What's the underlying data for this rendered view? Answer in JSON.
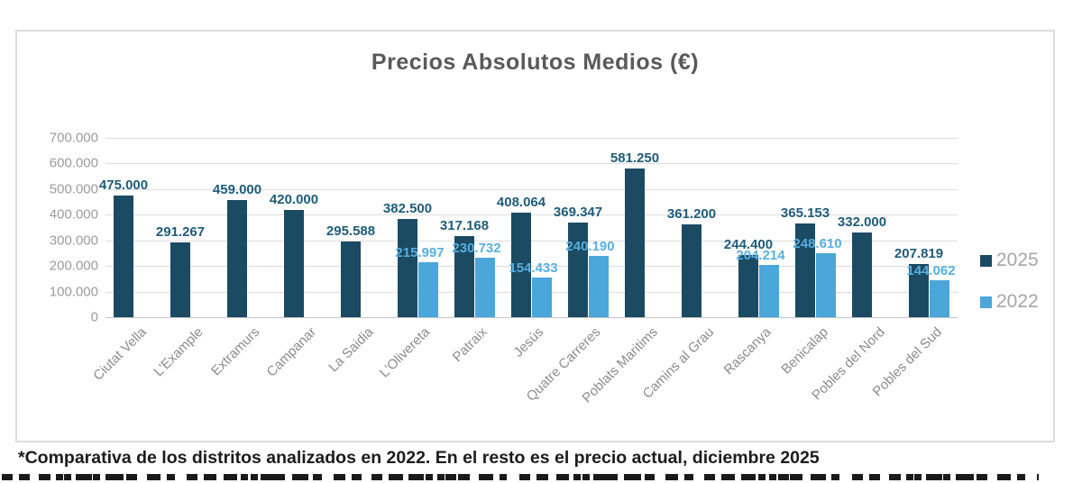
{
  "chart_data": {
    "type": "bar",
    "title": "Precios Absolutos Medios (€)",
    "footnote": "*Comparativa de los distritos analizados en 2022. En el resto es el precio actual, diciembre 2025",
    "categories": [
      "Ciutat Vella",
      "L'Example",
      "Extramurs",
      "Campanar",
      "La Saidia",
      "L'Olivereta",
      "Patraix",
      "Jesús",
      "Quatre Carreres",
      "Poblats Maritims",
      "Camins al Grau",
      "Rascanya",
      "Benicalap",
      "Pobles del Nord",
      "Pobles del Sud"
    ],
    "series": [
      {
        "name": "2025",
        "color": "#1b4a63",
        "label_color": "#1f5c7a",
        "values": [
          475000,
          291267,
          459000,
          420000,
          295588,
          382500,
          317168,
          408064,
          369347,
          581250,
          361200,
          244400,
          365153,
          332000,
          207819
        ],
        "labels": [
          "475.000",
          "291.267",
          "459.000",
          "420.000",
          "295.588",
          "382.500",
          "317.168",
          "408.064",
          "369.347",
          "581.250",
          "361.200",
          "244.400",
          "365.153",
          "332.000",
          "207.819"
        ]
      },
      {
        "name": "2022",
        "color": "#4ba6d9",
        "label_color": "#58afdf",
        "values": [
          null,
          null,
          null,
          null,
          null,
          215997,
          230732,
          154433,
          240190,
          null,
          null,
          204214,
          248610,
          null,
          144062
        ],
        "labels": [
          null,
          null,
          null,
          null,
          null,
          "215.997",
          "230.732",
          "154.433",
          "240.190",
          null,
          null,
          "204.214",
          "248.610",
          null,
          "144.062"
        ]
      }
    ],
    "y_axis": {
      "min": 0,
      "max": 700000,
      "ticks": [
        "700.000",
        "600.000",
        "500.000",
        "400.000",
        "300.000",
        "200.000",
        "100.000",
        "0"
      ]
    },
    "legend": [
      "2025",
      "2022"
    ],
    "grid": "horizontal",
    "legend_position": "right"
  }
}
